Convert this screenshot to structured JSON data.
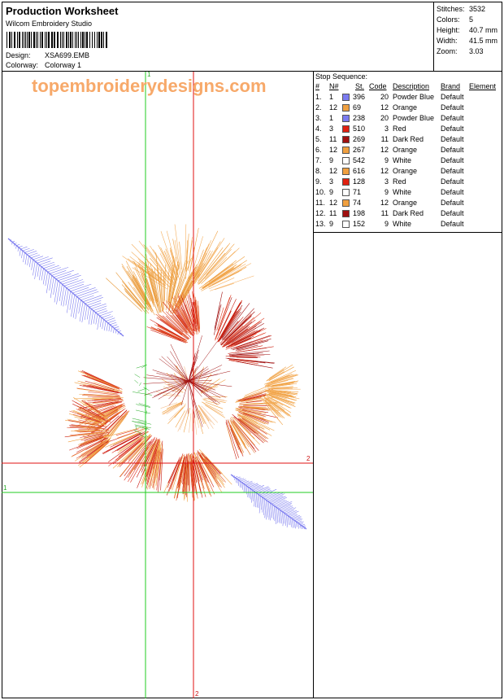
{
  "header": {
    "title": "Production Worksheet",
    "software": "Wilcom Embroidery Studio",
    "design_label": "Design:",
    "design_value": "XSA699.EMB",
    "colorway_label": "Colorway:",
    "colorway_value": "Colorway 1"
  },
  "stats": [
    {
      "label": "Stitches:",
      "value": "3532"
    },
    {
      "label": "Colors:",
      "value": "5"
    },
    {
      "label": "Height:",
      "value": "40.7 mm"
    },
    {
      "label": "Width:",
      "value": "41.5 mm"
    },
    {
      "label": "Zoom:",
      "value": "3.03"
    }
  ],
  "watermark": "topembroiderydesigns.com",
  "guides": {
    "green_label": "1",
    "red_label": "2"
  },
  "stop_sequence": {
    "title": "Stop Sequence:",
    "columns": [
      "#",
      "N#",
      "St.",
      "Code",
      "Description",
      "Brand",
      "Element"
    ],
    "rows": [
      {
        "num": "1.",
        "n": "1",
        "color": "#7b7bf0",
        "st": "396",
        "code": "20",
        "desc": "Powder Blue",
        "brand": "Default"
      },
      {
        "num": "2.",
        "n": "12",
        "color": "#f0a040",
        "st": "69",
        "code": "12",
        "desc": "Orange",
        "brand": "Default"
      },
      {
        "num": "3.",
        "n": "1",
        "color": "#7b7bf0",
        "st": "238",
        "code": "20",
        "desc": "Powder Blue",
        "brand": "Default"
      },
      {
        "num": "4.",
        "n": "3",
        "color": "#e02010",
        "st": "510",
        "code": "3",
        "desc": "Red",
        "brand": "Default"
      },
      {
        "num": "5.",
        "n": "11",
        "color": "#a01010",
        "st": "269",
        "code": "11",
        "desc": "Dark Red",
        "brand": "Default"
      },
      {
        "num": "6.",
        "n": "12",
        "color": "#f0a040",
        "st": "267",
        "code": "12",
        "desc": "Orange",
        "brand": "Default"
      },
      {
        "num": "7.",
        "n": "9",
        "color": "#ffffff",
        "st": "542",
        "code": "9",
        "desc": "White",
        "brand": "Default"
      },
      {
        "num": "8.",
        "n": "12",
        "color": "#f0a040",
        "st": "616",
        "code": "12",
        "desc": "Orange",
        "brand": "Default"
      },
      {
        "num": "9.",
        "n": "3",
        "color": "#e02010",
        "st": "128",
        "code": "3",
        "desc": "Red",
        "brand": "Default"
      },
      {
        "num": "10.",
        "n": "9",
        "color": "#ffffff",
        "st": "71",
        "code": "9",
        "desc": "White",
        "brand": "Default"
      },
      {
        "num": "11.",
        "n": "12",
        "color": "#f0a040",
        "st": "74",
        "code": "12",
        "desc": "Orange",
        "brand": "Default"
      },
      {
        "num": "12.",
        "n": "11",
        "color": "#a01010",
        "st": "198",
        "code": "11",
        "desc": "Dark Red",
        "brand": "Default"
      },
      {
        "num": "13.",
        "n": "9",
        "color": "#ffffff",
        "st": "152",
        "code": "9",
        "desc": "White",
        "brand": "Default"
      }
    ]
  }
}
